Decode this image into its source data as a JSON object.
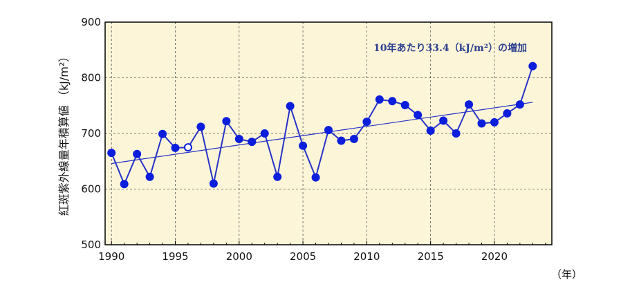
{
  "chart_data": {
    "type": "line",
    "title": "",
    "xlabel": "（年）",
    "ylabel": "紅斑紫外線量年積算値 （kJ/m²）",
    "annotation": "10年あたり33.4（kJ/m²）の増加",
    "xlim": [
      1989.5,
      2024.5
    ],
    "ylim": [
      500,
      900
    ],
    "x_ticks": [
      1990,
      1995,
      2000,
      2005,
      2010,
      2015,
      2020
    ],
    "y_ticks": [
      500,
      600,
      700,
      800,
      900
    ],
    "grid": true,
    "series": [
      {
        "x": [
          1990,
          1991,
          1992,
          1993,
          1994,
          1995,
          1996,
          1997,
          1998,
          1999,
          2000,
          2001,
          2002,
          2003,
          2004,
          2005,
          2006,
          2007,
          2008,
          2009,
          2010,
          2011,
          2012,
          2013,
          2014,
          2015,
          2016,
          2017,
          2018,
          2019,
          2020,
          2021,
          2022,
          2023
        ],
        "values": [
          665,
          609,
          663,
          622,
          699,
          674,
          675,
          712,
          610,
          722,
          690,
          685,
          700,
          622,
          749,
          678,
          621,
          706,
          687,
          690,
          721,
          761,
          758,
          751,
          733,
          705,
          723,
          700,
          752,
          718,
          720,
          736,
          752,
          821
        ],
        "open_markers": [
          1996
        ]
      }
    ],
    "trend": {
      "x": [
        1990,
        2023
      ],
      "values": [
        646,
        756
      ]
    },
    "colors": {
      "series": "#2432c8",
      "marker": "#0a1edc",
      "plot_bg": "#fdf5d8",
      "grid": "#555555",
      "annotation": "#2a3f8f"
    }
  }
}
